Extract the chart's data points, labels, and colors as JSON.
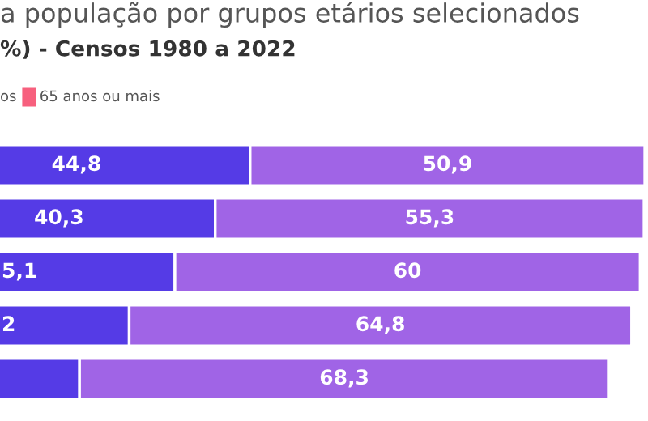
{
  "chart_data": {
    "type": "bar",
    "orientation": "horizontal",
    "stacked": true,
    "title": "a população por grupos etários selecionados",
    "subtitle": "%) - Censos 1980 a 2022",
    "categories": [
      null,
      null,
      null,
      null,
      null
    ],
    "series": [
      {
        "color": "#553be6",
        "values": [
          44.8,
          40.3,
          35.1,
          29.2,
          22.8
        ],
        "value_labels": [
          "44,8",
          "40,3",
          null,
          null,
          null
        ]
      },
      {
        "name": "os",
        "color": "#a064e6",
        "values": [
          50.9,
          55.3,
          60,
          64.8,
          68.3
        ],
        "value_labels": [
          "50,9",
          "55,3",
          "60",
          "64,8",
          "68,3"
        ]
      },
      {
        "name": "65 anos ou mais",
        "color": "#f7607e",
        "values": [
          null,
          null,
          null,
          null,
          null
        ]
      }
    ],
    "annotations": [
      "5,1",
      "2"
    ],
    "legend": "top left"
  }
}
